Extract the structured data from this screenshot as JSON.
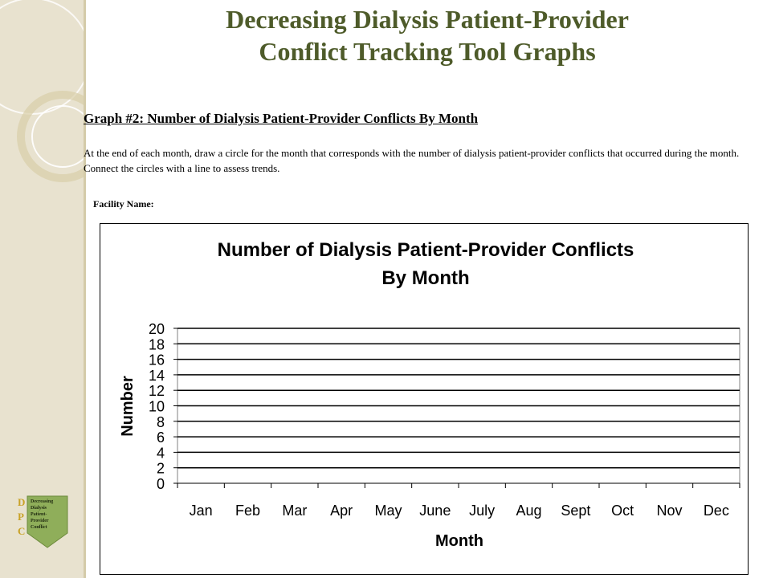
{
  "slide": {
    "title_line1": "Decreasing Dialysis Patient-Provider",
    "title_line2": "Conflict Tracking Tool Graphs",
    "graph_heading": "Graph #2: Number of Dialysis Patient-Provider Conflicts By Month",
    "instructions": "At the end of each month, draw a circle for the month that corresponds with the number of dialysis patient-provider conflicts that occurred during the month.  Connect the circles with a line to assess trends.",
    "facility_label": "Facility Name:"
  },
  "logo": {
    "letters": [
      "D",
      "P",
      "C"
    ],
    "lines": [
      "Decreasing",
      "Dialysis",
      "Patient-",
      "Provider",
      "Conflict"
    ]
  },
  "colors": {
    "title": "#4e5b2a",
    "sidebar": "#e8e2cf",
    "logo_green": "#8fae5a",
    "logo_letters": "#c9a227"
  },
  "chart_data": {
    "type": "line",
    "title": "Number of Dialysis Patient-Provider Conflicts",
    "subtitle": "By Month",
    "xlabel": "Month",
    "ylabel": "Number",
    "categories": [
      "Jan",
      "Feb",
      "Mar",
      "Apr",
      "May",
      "June",
      "July",
      "Aug",
      "Sept",
      "Oct",
      "Nov",
      "Dec"
    ],
    "yticks": [
      "0",
      "2",
      "4",
      "6",
      "8",
      "10",
      "12",
      "14",
      "16",
      "18",
      "20"
    ],
    "ylim": [
      0,
      20
    ],
    "series": [],
    "grid": true
  }
}
